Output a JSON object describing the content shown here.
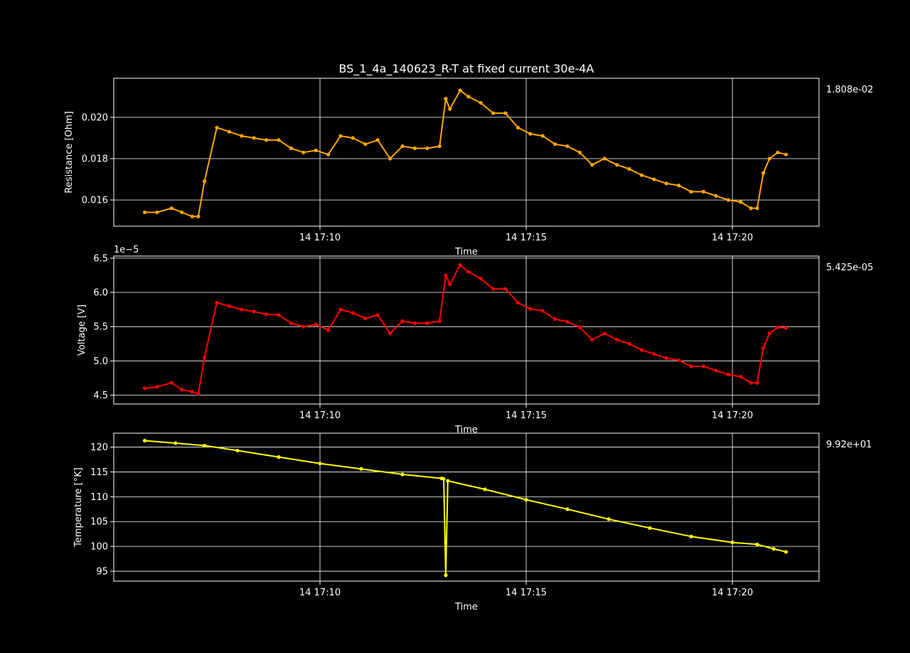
{
  "title": "BS_1_4a_140623_R-T at fixed current 30e-4A",
  "chart_data": [
    {
      "type": "line",
      "id": "resistance",
      "ylabel": "Resistance [Ohm]",
      "xlabel": "Time",
      "xticks": [
        "14 17:10",
        "14 17:15",
        "14 17:20"
      ],
      "xtick_minutes": [
        10,
        15,
        20
      ],
      "xlim_minutes": [
        5.0,
        22.1
      ],
      "yticks": [
        "0.016",
        "0.018",
        "0.020"
      ],
      "ytick_values": [
        0.016,
        0.018,
        0.02
      ],
      "ylim": [
        0.01473,
        0.02189
      ],
      "offset_text": "",
      "side_value": "1.808e-02",
      "color": "#ffa500",
      "grid": true,
      "series": [
        {
          "x_minutes": [
            5.75,
            6.05,
            6.4,
            6.65,
            6.9,
            7.05,
            7.2,
            7.5,
            7.8,
            8.1,
            8.4,
            8.7,
            9.0,
            9.3,
            9.6,
            9.9,
            10.2,
            10.5,
            10.8,
            11.1,
            11.4,
            11.7,
            12.0,
            12.3,
            12.6,
            12.9,
            13.05,
            13.15,
            13.4,
            13.6,
            13.9,
            14.2,
            14.5,
            14.8,
            15.1,
            15.4,
            15.7,
            16.0,
            16.3,
            16.6,
            16.9,
            17.2,
            17.5,
            17.8,
            18.1,
            18.4,
            18.7,
            19.0,
            19.3,
            19.6,
            19.9,
            20.2,
            20.45,
            20.6,
            20.75,
            20.9,
            21.1,
            21.3
          ],
          "values": [
            0.0154,
            0.0154,
            0.0156,
            0.0154,
            0.0152,
            0.0152,
            0.0169,
            0.0195,
            0.0193,
            0.0191,
            0.019,
            0.0189,
            0.0189,
            0.0185,
            0.0183,
            0.0184,
            0.0182,
            0.0191,
            0.019,
            0.0187,
            0.0189,
            0.018,
            0.0186,
            0.0185,
            0.0185,
            0.0186,
            0.0209,
            0.0204,
            0.0213,
            0.021,
            0.0207,
            0.0202,
            0.0202,
            0.0195,
            0.0192,
            0.0191,
            0.0187,
            0.0186,
            0.0183,
            0.0177,
            0.018,
            0.0177,
            0.0175,
            0.0172,
            0.017,
            0.0168,
            0.0167,
            0.0164,
            0.0164,
            0.0162,
            0.016,
            0.0159,
            0.0156,
            0.0156,
            0.0173,
            0.018,
            0.0183,
            0.0182
          ]
        }
      ]
    },
    {
      "type": "line",
      "id": "voltage",
      "ylabel": "Voltage [V]",
      "xlabel": "Time",
      "xticks": [
        "14 17:10",
        "14 17:15",
        "14 17:20"
      ],
      "xtick_minutes": [
        10,
        15,
        20
      ],
      "xlim_minutes": [
        5.0,
        22.1
      ],
      "yticks": [
        "4.5",
        "5.0",
        "5.5",
        "6.0",
        "6.5"
      ],
      "ytick_values": [
        4.5,
        5.0,
        5.5,
        6.0,
        6.5
      ],
      "ylim": [
        4.37,
        6.53
      ],
      "offset_text": "1e−5",
      "side_value": "5.425e-05",
      "color": "#ff0000",
      "grid": true,
      "series": [
        {
          "x_minutes": [
            5.75,
            6.05,
            6.4,
            6.65,
            6.9,
            7.05,
            7.2,
            7.5,
            7.8,
            8.1,
            8.4,
            8.7,
            9.0,
            9.3,
            9.6,
            9.9,
            10.2,
            10.5,
            10.8,
            11.1,
            11.4,
            11.7,
            12.0,
            12.3,
            12.6,
            12.9,
            13.05,
            13.15,
            13.4,
            13.6,
            13.9,
            14.2,
            14.5,
            14.8,
            15.1,
            15.4,
            15.7,
            16.0,
            16.3,
            16.6,
            16.9,
            17.2,
            17.5,
            17.8,
            18.1,
            18.4,
            18.7,
            19.0,
            19.3,
            19.6,
            19.9,
            20.2,
            20.45,
            20.6,
            20.75,
            20.9,
            21.1,
            21.3
          ],
          "values": [
            4.6,
            4.62,
            4.68,
            4.58,
            4.55,
            4.52,
            5.05,
            5.85,
            5.8,
            5.75,
            5.72,
            5.68,
            5.67,
            5.55,
            5.5,
            5.53,
            5.45,
            5.75,
            5.7,
            5.62,
            5.67,
            5.4,
            5.58,
            5.55,
            5.55,
            5.58,
            6.25,
            6.12,
            6.4,
            6.3,
            6.2,
            6.05,
            6.05,
            5.85,
            5.76,
            5.73,
            5.61,
            5.57,
            5.49,
            5.31,
            5.4,
            5.31,
            5.25,
            5.16,
            5.1,
            5.04,
            5.01,
            4.92,
            4.92,
            4.86,
            4.8,
            4.77,
            4.68,
            4.68,
            5.19,
            5.4,
            5.49,
            5.48
          ]
        }
      ]
    },
    {
      "type": "line",
      "id": "temperature",
      "ylabel": "Temperature [°K]",
      "xlabel": "Time",
      "xticks": [
        "14 17:10",
        "14 17:15",
        "14 17:20"
      ],
      "xtick_minutes": [
        10,
        15,
        20
      ],
      "xlim_minutes": [
        5.0,
        22.1
      ],
      "yticks": [
        "95",
        "100",
        "105",
        "110",
        "115",
        "120"
      ],
      "ytick_values": [
        95,
        100,
        105,
        110,
        115,
        120
      ],
      "ylim": [
        93.0,
        122.8
      ],
      "offset_text": "",
      "side_value": "9.92e+01",
      "color": "#ffff00",
      "grid": true,
      "series": [
        {
          "x_minutes": [
            5.75,
            6.5,
            7.2,
            8.0,
            9.0,
            10.0,
            11.0,
            12.0,
            12.95,
            13.0,
            13.05,
            13.1,
            14.0,
            15.0,
            16.0,
            17.0,
            18.0,
            19.0,
            20.0,
            20.6,
            21.0,
            21.3
          ],
          "values": [
            121.3,
            120.8,
            120.3,
            119.3,
            118.0,
            116.7,
            115.6,
            114.5,
            113.7,
            113.6,
            94.2,
            113.2,
            111.5,
            109.4,
            107.5,
            105.5,
            103.7,
            102.0,
            100.8,
            100.4,
            99.5,
            98.9
          ]
        }
      ]
    }
  ]
}
